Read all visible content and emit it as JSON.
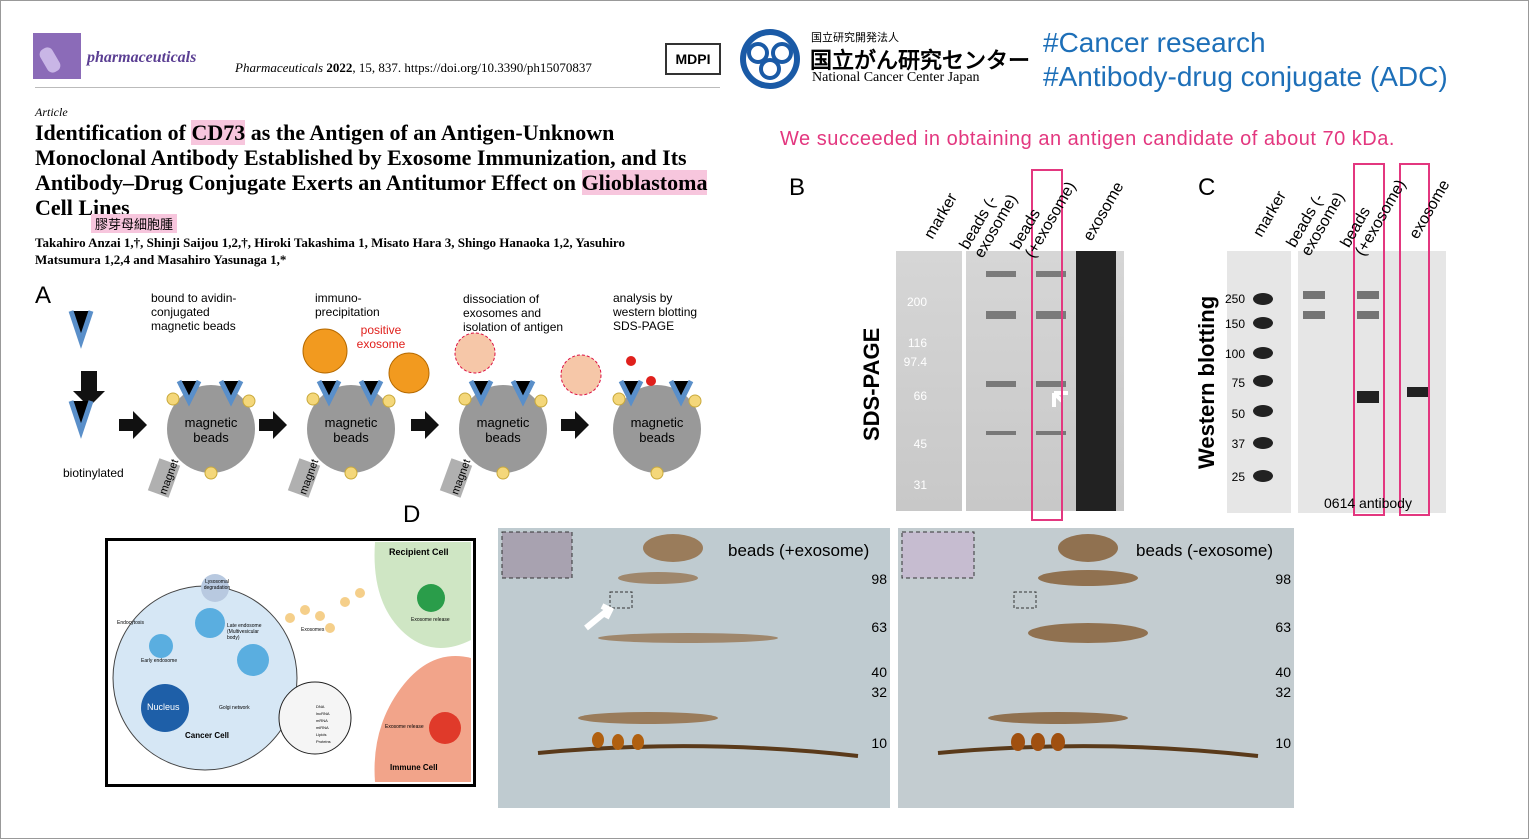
{
  "header": {
    "journal": "pharmaceuticals",
    "citation_journal": "Pharmaceuticals",
    "citation_year": "2022",
    "citation_rest": ", 15, 837. https://doi.org/10.3390/ph15070837",
    "publisher": "MDPI"
  },
  "logo": {
    "org_type": "国立研究開発法人",
    "name_ja": "国立がん研究センター",
    "name_en": "National Cancer Center Japan"
  },
  "hashtags": [
    "#Cancer research",
    "#Antibody-drug conjugate (ADC)"
  ],
  "message": "We succeeded in obtaining an antigen candidate of about 70 kDa.",
  "article": {
    "kind": "Article",
    "title_parts": [
      "Identification of ",
      "CD73",
      " as the Antigen of an Antigen-Unknown Monoclonal Antibody Established by Exosome Immunization, and Its Antibody–Drug Conjugate Exerts an Antitumor Effect on ",
      "Glioblastoma",
      " Cell Lines"
    ],
    "annotation": "膠芽母細胞腫",
    "authors": "Takahiro Anzai 1,†, Shinji Saijou 1,2,†, Hiroki Takashima 1, Misato Hara 3, Shingo Hanaoka 1,2, Yasuhiro Matsumura 1,2,4 and Masahiro Yasunaga 1,*"
  },
  "panel_a": {
    "label": "A",
    "steps": [
      "bound to avidin-conjugated magnetic beads",
      "immuno-precipitation",
      "dissociation of exosomes and isolation of antigen",
      "analysis by western blotting SDS-PAGE"
    ],
    "biotinylated": "biotinylated",
    "positive": "positive exosome",
    "beads": "magnetic beads",
    "magnet": "magnet"
  },
  "panel_b": {
    "label": "B",
    "lanes": [
      "marker",
      "beads (-exosome)",
      "beads (+exosome)",
      "exosome"
    ],
    "axis_label": "SDS-PAGE",
    "markers": [
      "200",
      "116",
      "97.4",
      "66",
      "45",
      "31"
    ]
  },
  "panel_c": {
    "label": "C",
    "lanes": [
      "marker",
      "beads (-exosome)",
      "beads (+exosome)",
      "exosome"
    ],
    "axis_label": "Western blotting",
    "markers": [
      "250",
      "150",
      "100",
      "75",
      "50",
      "37",
      "25"
    ],
    "antibody": "0614 antibody"
  },
  "panel_d": {
    "label": "D",
    "diagram": {
      "recipient": "Recipient Cell",
      "release": "Exosome release",
      "lysosomal": "Lysosomal degradation",
      "endocytosis": "Endocytosis",
      "late": "Late endosome (Multivesicular body)",
      "early": "Early endosome",
      "exosomes": "Exosomes",
      "nucleus": "Nucleus",
      "golgi": "Golgi network",
      "cancer": "Cancer Cell",
      "immune": "Immune Cell",
      "cargo": [
        "DNA",
        "lncRNA",
        "mRNA",
        "miRNA",
        "Lipids",
        "Proteins"
      ]
    },
    "gels": [
      {
        "title": "beads (+exosome)",
        "markers": [
          "98",
          "63",
          "40",
          "32",
          "10"
        ]
      },
      {
        "title": "beads (-exosome)",
        "markers": [
          "98",
          "63",
          "40",
          "32",
          "10"
        ]
      }
    ]
  }
}
